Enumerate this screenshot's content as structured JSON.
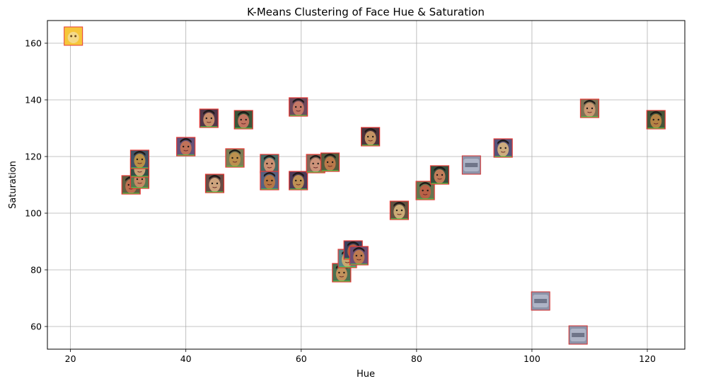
{
  "chart_data": {
    "type": "scatter",
    "title": "K-Means Clustering of Face Hue & Saturation",
    "xlabel": "Hue",
    "ylabel": "Saturation",
    "xlim": [
      16,
      126.5
    ],
    "ylim": [
      52,
      168
    ],
    "xticks": [
      20,
      40,
      60,
      80,
      100,
      120
    ],
    "yticks": [
      60,
      80,
      100,
      120,
      140,
      160
    ],
    "grid": true,
    "legend": "none",
    "marker": "face-thumbnail",
    "points": [
      {
        "x": 20.5,
        "y": 162.5,
        "kind": "cartoon"
      },
      {
        "x": 30.5,
        "y": 110,
        "kind": "face"
      },
      {
        "x": 32,
        "y": 112,
        "kind": "face"
      },
      {
        "x": 32,
        "y": 116,
        "kind": "face"
      },
      {
        "x": 32,
        "y": 119,
        "kind": "face"
      },
      {
        "x": 40,
        "y": 123.5,
        "kind": "face"
      },
      {
        "x": 44,
        "y": 133.5,
        "kind": "face"
      },
      {
        "x": 45,
        "y": 110.5,
        "kind": "face"
      },
      {
        "x": 48.5,
        "y": 119.5,
        "kind": "face"
      },
      {
        "x": 50,
        "y": 133,
        "kind": "face"
      },
      {
        "x": 54.5,
        "y": 117.5,
        "kind": "face"
      },
      {
        "x": 54.5,
        "y": 111.5,
        "kind": "face"
      },
      {
        "x": 59.5,
        "y": 111.5,
        "kind": "face"
      },
      {
        "x": 59.5,
        "y": 137.5,
        "kind": "face"
      },
      {
        "x": 62.5,
        "y": 117.5,
        "kind": "face"
      },
      {
        "x": 65,
        "y": 118,
        "kind": "face"
      },
      {
        "x": 67,
        "y": 79,
        "kind": "face"
      },
      {
        "x": 68,
        "y": 84,
        "kind": "face"
      },
      {
        "x": 69,
        "y": 87,
        "kind": "face"
      },
      {
        "x": 70,
        "y": 85,
        "kind": "face"
      },
      {
        "x": 72,
        "y": 127,
        "kind": "face"
      },
      {
        "x": 77,
        "y": 101,
        "kind": "face"
      },
      {
        "x": 81.5,
        "y": 108,
        "kind": "face"
      },
      {
        "x": 84,
        "y": 113.5,
        "kind": "face"
      },
      {
        "x": 89.5,
        "y": 117,
        "kind": "blurred"
      },
      {
        "x": 95,
        "y": 123,
        "kind": "face"
      },
      {
        "x": 101.5,
        "y": 69,
        "kind": "blurred"
      },
      {
        "x": 108,
        "y": 57,
        "kind": "blurred"
      },
      {
        "x": 110,
        "y": 137,
        "kind": "face"
      },
      {
        "x": 121.5,
        "y": 133,
        "kind": "face"
      }
    ]
  }
}
